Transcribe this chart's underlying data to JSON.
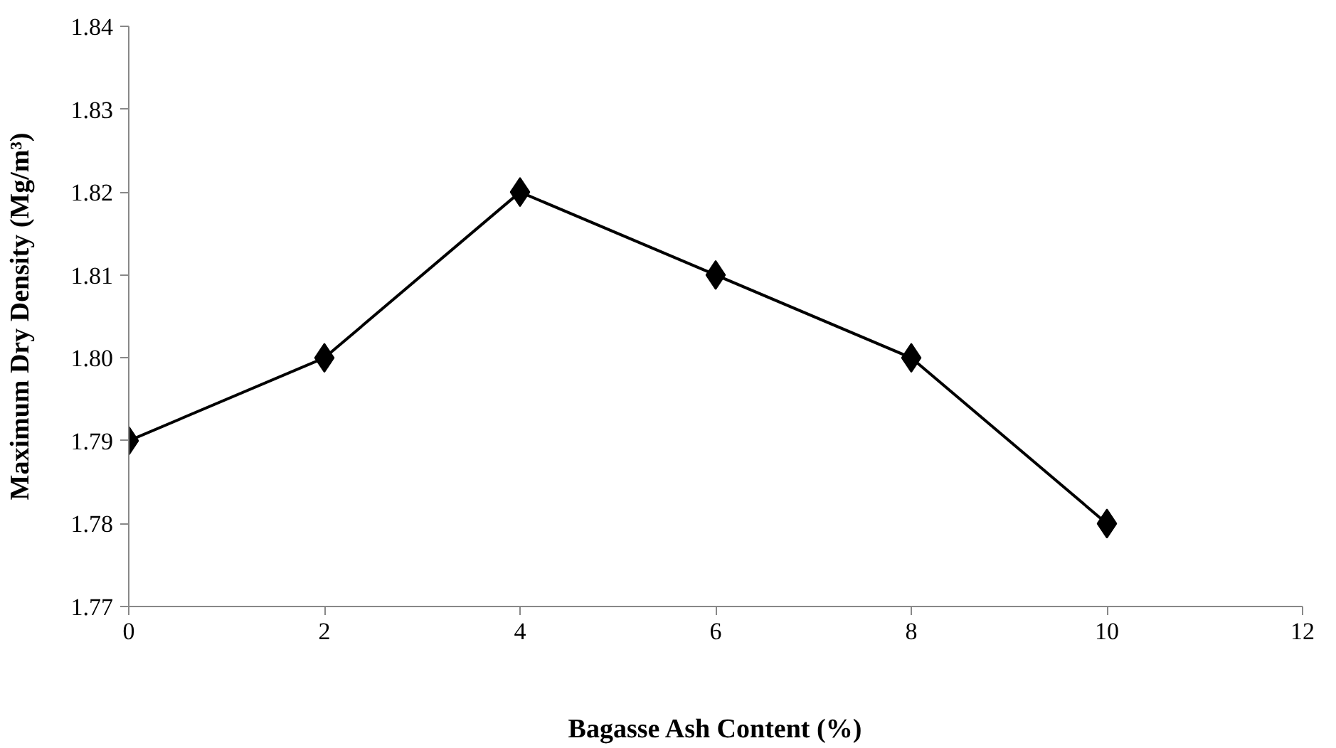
{
  "chart_data": {
    "type": "line",
    "xlabel": "Bagasse Ash Content (%)",
    "ylabel": "Maximum Dry Density (Mg/m³)",
    "x": [
      0,
      2,
      4,
      6,
      8,
      10
    ],
    "series": [
      {
        "color": "#000000",
        "values": [
          1.79,
          1.8,
          1.82,
          1.81,
          1.8,
          1.78
        ]
      }
    ],
    "xlim": [
      0,
      12
    ],
    "xticks": [
      0,
      2,
      4,
      6,
      8,
      10,
      12
    ],
    "ylim": [
      1.77,
      1.84
    ],
    "yticks": [
      {
        "value": 1.77,
        "label": "1.77"
      },
      {
        "value": 1.78,
        "label": "1.78"
      },
      {
        "value": 1.79,
        "label": "1.79"
      },
      {
        "value": 1.8,
        "label": "1.80"
      },
      {
        "value": 1.81,
        "label": "1.81"
      },
      {
        "value": 1.82,
        "label": "1.82"
      },
      {
        "value": 1.83,
        "label": "1.83"
      },
      {
        "value": 1.84,
        "label": "1.84"
      }
    ],
    "grid": false,
    "marker": "diamond",
    "line_style": "solid"
  }
}
